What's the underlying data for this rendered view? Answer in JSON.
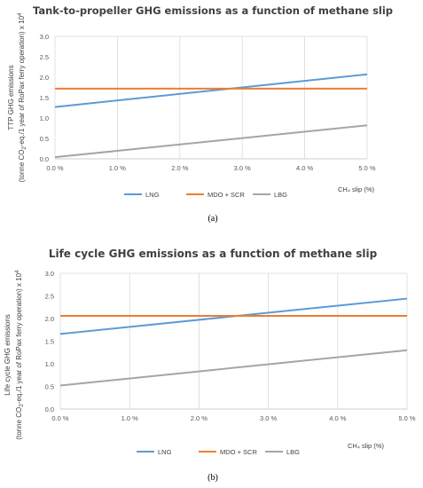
{
  "colors": {
    "LNG": "#5b9bd5",
    "MDO + SCR": "#ed7d31",
    "LBG": "#a5a5a5",
    "grid": "#d9d9d9"
  },
  "chart_data": [
    {
      "type": "line",
      "panel_label": "(a)",
      "title": "Tank-to-propeller GHG emissions as a function of methane slip",
      "ylabel_line1": "TTP GHG emissions",
      "ylabel_line2": "(tonne CO2-eq./1 year of RoPax ferry operation) x 10⁴",
      "xlabel": "CH₄ slip (%)",
      "x": [
        0.0,
        5.0
      ],
      "xticks": [
        "0.0 %",
        "1.0 %",
        "2.0 %",
        "3.0 %",
        "4.0 %",
        "5.0 %"
      ],
      "yticks": [
        "0.0",
        "0.5",
        "1.0",
        "1.5",
        "2.0",
        "2.5",
        "3.0"
      ],
      "xlim": [
        0,
        5
      ],
      "ylim": [
        0,
        3
      ],
      "grid": "vertical",
      "legend_position": "bottom",
      "series": [
        {
          "name": "LNG",
          "values": [
            1.27,
            2.07
          ]
        },
        {
          "name": "MDO + SCR",
          "values": [
            1.72,
            1.72
          ]
        },
        {
          "name": "LBG",
          "values": [
            0.04,
            0.82
          ]
        }
      ]
    },
    {
      "type": "line",
      "panel_label": "(b)",
      "title": "Life cycle GHG emissions as a function of methane slip",
      "ylabel_line1": "Life cycle GHG emissions",
      "ylabel_line2": "(tonne CO2-eq./1 year of RoPax ferry operation) x 10⁴",
      "xlabel": "CH₄ slip (%)",
      "x": [
        0.0,
        5.0
      ],
      "xticks": [
        "0.0 %",
        "1.0 %",
        "2.0 %",
        "3.0 %",
        "4.0 %",
        "5.0 %"
      ],
      "yticks": [
        "0.0",
        "0.5",
        "1.0",
        "1.5",
        "2.0",
        "2.5",
        "3.0"
      ],
      "xlim": [
        0,
        5
      ],
      "ylim": [
        0,
        3
      ],
      "grid": "vertical",
      "legend_position": "bottom",
      "series": [
        {
          "name": "LNG",
          "values": [
            1.66,
            2.44
          ]
        },
        {
          "name": "MDO + SCR",
          "values": [
            2.06,
            2.06
          ]
        },
        {
          "name": "LBG",
          "values": [
            0.52,
            1.3
          ]
        }
      ]
    }
  ]
}
